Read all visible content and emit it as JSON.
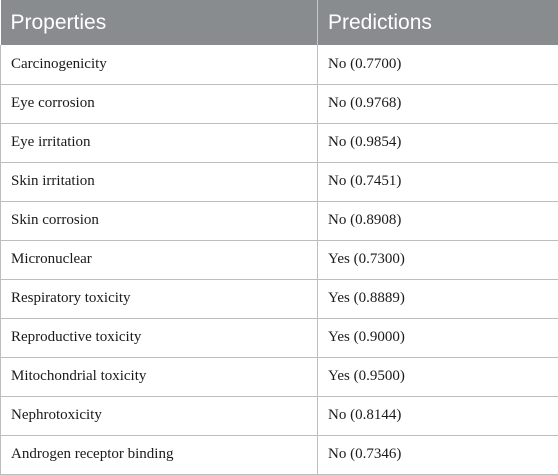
{
  "table": {
    "headers": [
      "Properties",
      "Predictions"
    ],
    "rows": [
      [
        "Carcinogenicity",
        "No (0.7700)"
      ],
      [
        "Eye corrosion",
        "No (0.9768)"
      ],
      [
        "Eye irritation",
        "No (0.9854)"
      ],
      [
        "Skin irritation",
        "No (0.7451)"
      ],
      [
        "Skin corrosion",
        "No (0.8908)"
      ],
      [
        "Micronuclear",
        "Yes (0.7300)"
      ],
      [
        "Respiratory toxicity",
        "Yes (0.8889)"
      ],
      [
        "Reproductive toxicity",
        "Yes (0.9000)"
      ],
      [
        "Mitochondrial toxicity",
        "Yes (0.9500)"
      ],
      [
        "Nephrotoxicity",
        "No (0.8144)"
      ],
      [
        "Androgen receptor binding",
        "No (0.7346)"
      ]
    ]
  }
}
